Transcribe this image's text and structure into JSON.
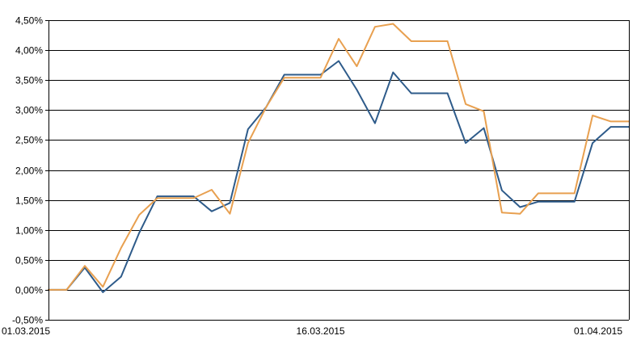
{
  "chart_data": {
    "type": "line",
    "title": "",
    "xlabel": "",
    "ylabel": "",
    "x_tick_labels": [
      "01.03.2015",
      "16.03.2015",
      "01.04.2015"
    ],
    "y_tick_labels": [
      "-0,50%",
      "0,00%",
      "0,50%",
      "1,00%",
      "1,50%",
      "2,00%",
      "2,50%",
      "3,00%",
      "3,50%",
      "4,00%",
      "4,50%"
    ],
    "ylim": [
      -0.5,
      4.5
    ],
    "xlim": [
      "01.03.2015",
      "02.04.2015"
    ],
    "grid": "horizontal",
    "legend": "none",
    "x": [
      "01.03.2015",
      "02.03.2015",
      "03.03.2015",
      "04.03.2015",
      "05.03.2015",
      "06.03.2015",
      "07.03.2015",
      "08.03.2015",
      "09.03.2015",
      "10.03.2015",
      "11.03.2015",
      "12.03.2015",
      "13.03.2015",
      "14.03.2015",
      "15.03.2015",
      "16.03.2015",
      "17.03.2015",
      "18.03.2015",
      "19.03.2015",
      "20.03.2015",
      "21.03.2015",
      "22.03.2015",
      "23.03.2015",
      "24.03.2015",
      "25.03.2015",
      "26.03.2015",
      "27.03.2015",
      "28.03.2015",
      "29.03.2015",
      "30.03.2015",
      "31.03.2015",
      "01.04.2015",
      "02.04.2015"
    ],
    "series": [
      {
        "color": "#2e5b8a",
        "values": [
          0.0,
          0.0,
          0.37,
          -0.04,
          0.22,
          0.95,
          1.56,
          1.56,
          1.56,
          1.31,
          1.45,
          2.68,
          3.05,
          3.59,
          3.59,
          3.59,
          3.82,
          3.34,
          2.78,
          3.63,
          3.28,
          3.28,
          3.28,
          2.45,
          2.7,
          1.66,
          1.38,
          1.47,
          1.47,
          1.47,
          2.45,
          2.72,
          2.72
        ]
      },
      {
        "color": "#e8a050",
        "values": [
          0.0,
          0.0,
          0.4,
          0.05,
          0.7,
          1.25,
          1.53,
          1.53,
          1.53,
          1.67,
          1.27,
          2.45,
          3.05,
          3.54,
          3.54,
          3.54,
          4.19,
          3.73,
          4.39,
          4.44,
          4.15,
          4.15,
          4.15,
          3.1,
          2.98,
          1.29,
          1.27,
          1.61,
          1.61,
          1.61,
          2.91,
          2.81,
          2.81
        ]
      }
    ]
  }
}
